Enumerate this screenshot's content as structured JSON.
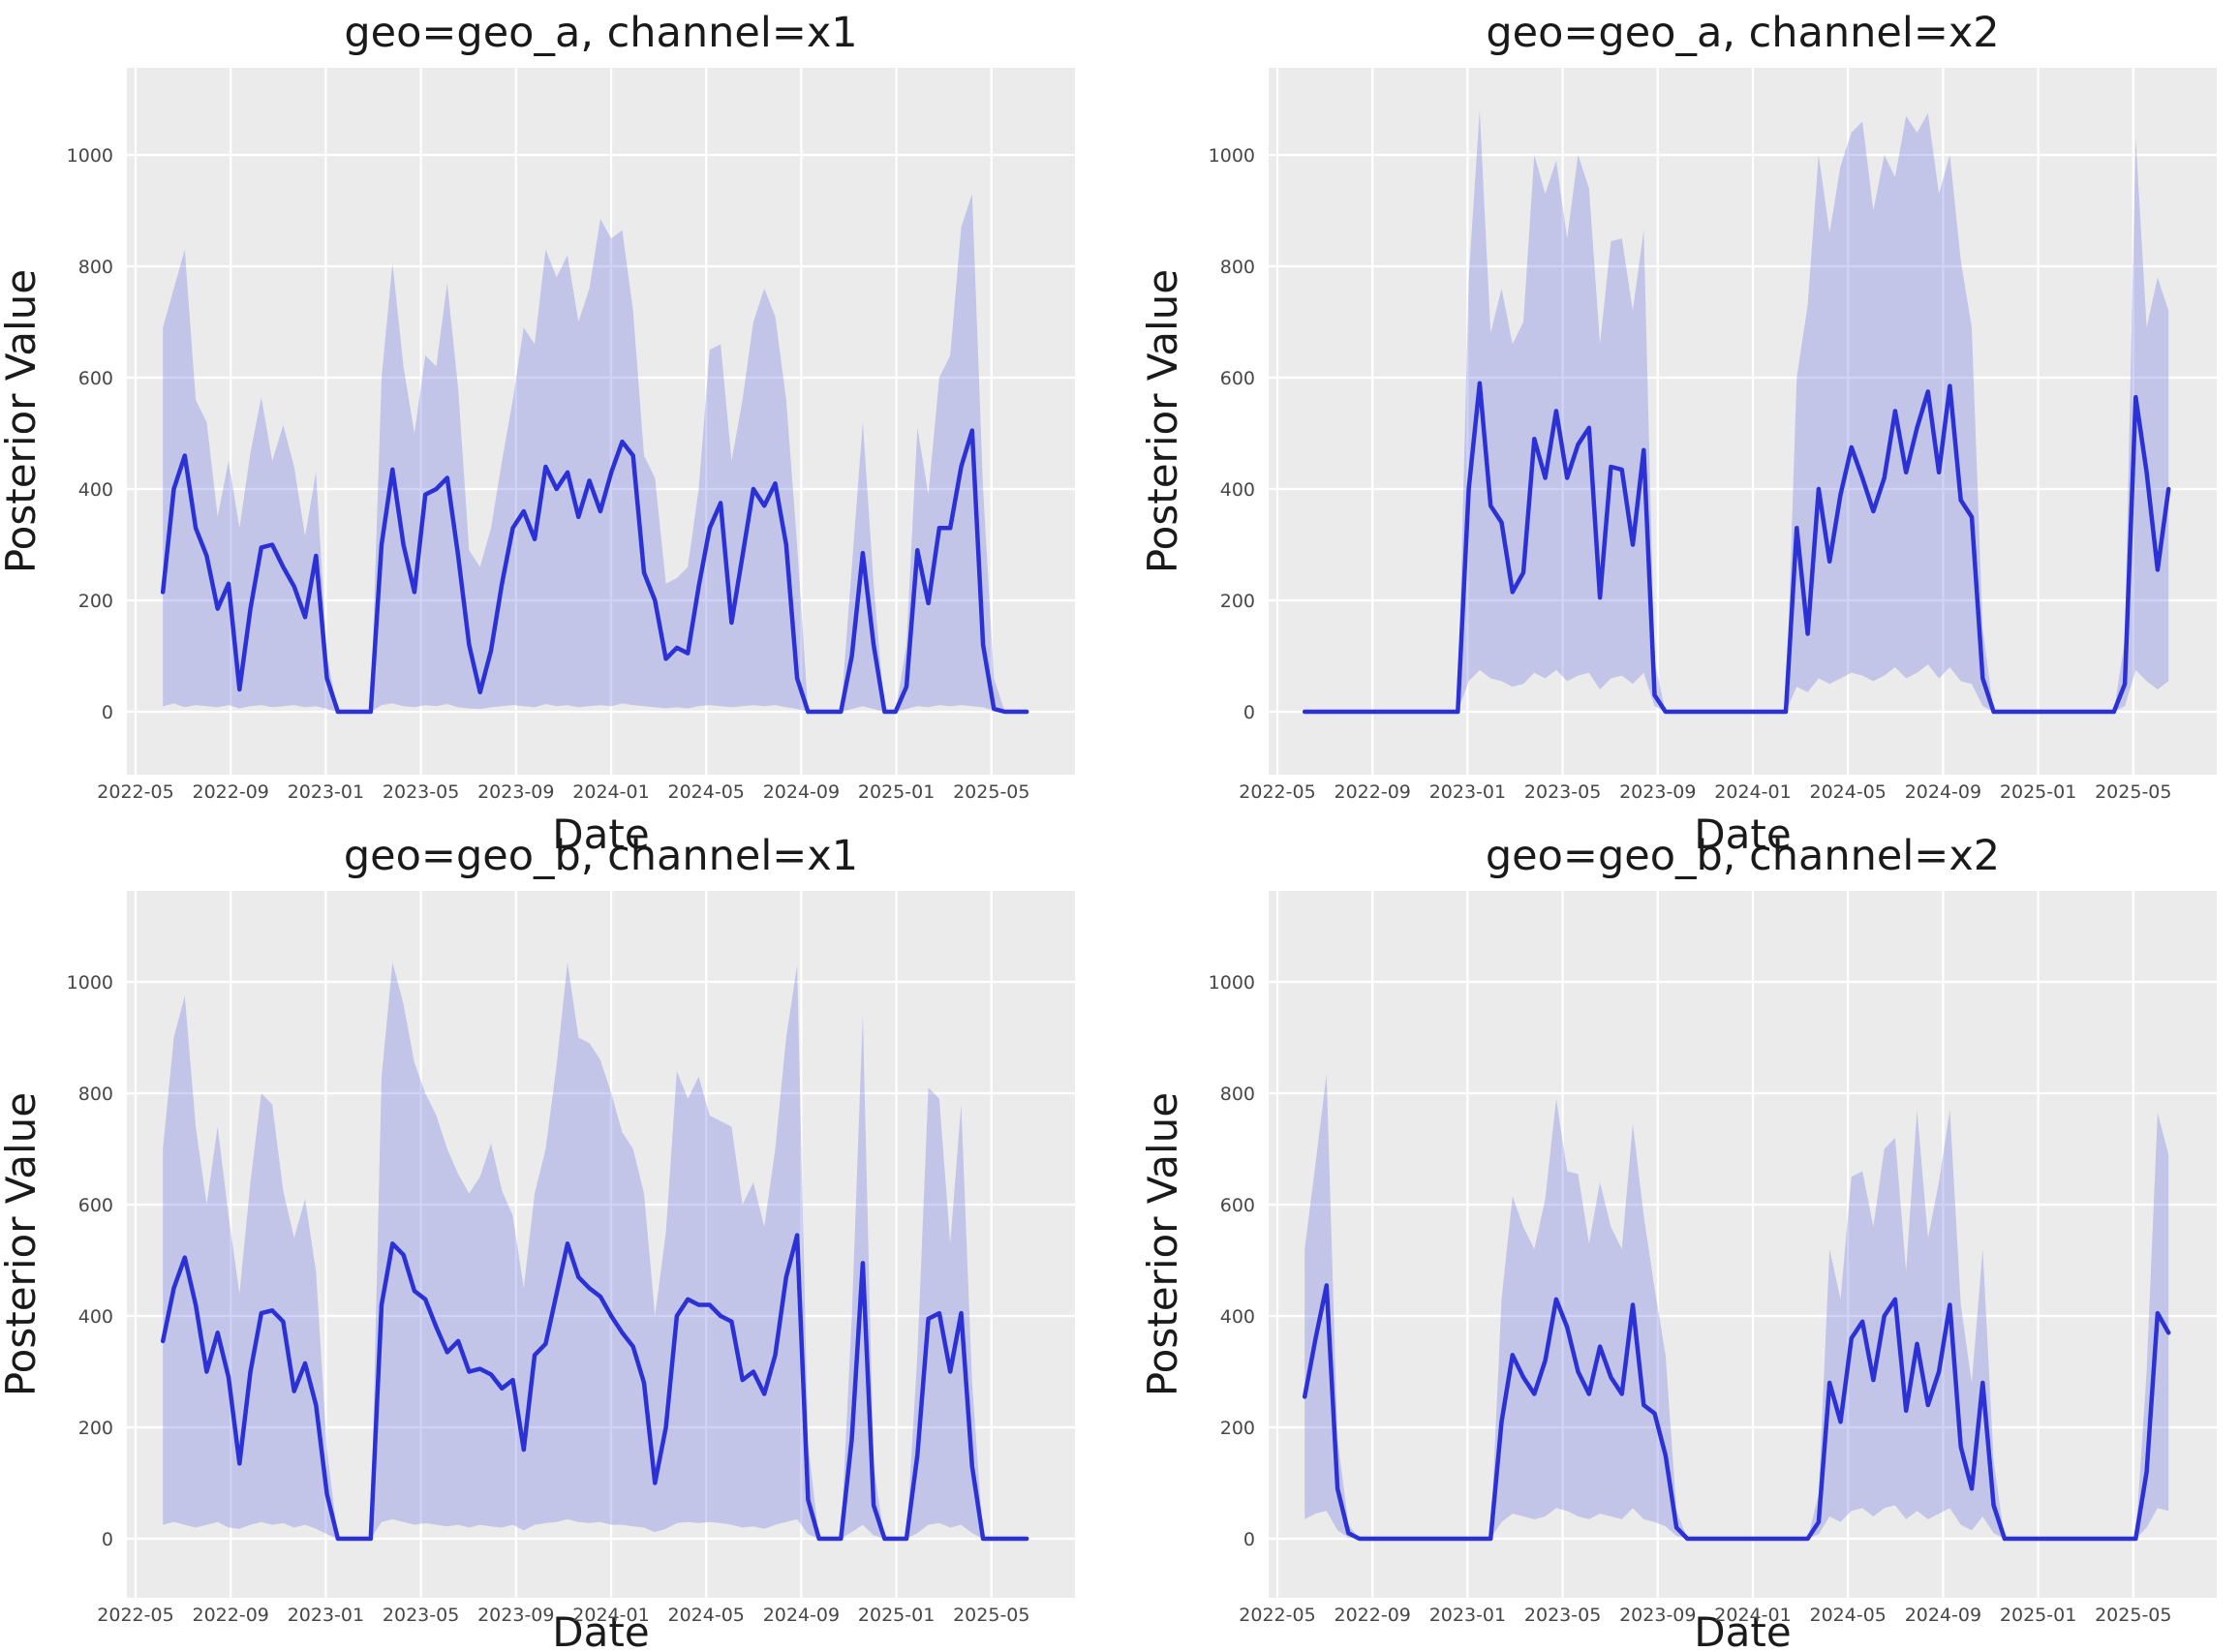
{
  "style": {
    "figure_background": "#ffffff",
    "axes_background": "#ebebeb",
    "gridline_color": "#ffffff",
    "median_line_color": "#2b31d4",
    "band_fill_color": "#6469e1",
    "band_fill_opacity": 0.3,
    "tick_text_color": "#474747",
    "label_text_color": "#1a1a1a"
  },
  "axis": {
    "x_label": "Date",
    "y_label": "Posterior Value",
    "x_ticks": [
      "2022-05",
      "2022-09",
      "2023-01",
      "2023-05",
      "2023-09",
      "2024-01",
      "2024-05",
      "2024-09",
      "2025-01",
      "2025-05"
    ],
    "y_ticks": [
      "0",
      "200",
      "400",
      "600",
      "800",
      "1000"
    ]
  },
  "chart_data": [
    {
      "type": "line",
      "title": "geo=geo_a, channel=x1",
      "geo": "geo_a",
      "channel": "x1",
      "x_start": "2022-06-05",
      "x_step_days": 14,
      "ylim": [
        -85,
        1210
      ],
      "median": [
        215,
        400,
        460,
        330,
        280,
        185,
        230,
        40,
        185,
        295,
        300,
        260,
        225,
        170,
        280,
        60,
        0,
        0,
        0,
        0,
        300,
        435,
        300,
        215,
        390,
        400,
        420,
        280,
        120,
        35,
        110,
        230,
        330,
        360,
        310,
        440,
        400,
        430,
        350,
        415,
        360,
        430,
        485,
        460,
        250,
        200,
        95,
        115,
        105,
        225,
        330,
        375,
        160,
        280,
        400,
        370,
        410,
        300,
        60,
        0,
        0,
        0,
        0,
        100,
        285,
        120,
        0,
        0,
        45,
        290,
        195,
        330,
        330,
        440,
        505,
        120,
        5,
        0,
        0,
        0
      ],
      "band_low": [
        10,
        15,
        8,
        12,
        10,
        8,
        12,
        6,
        10,
        12,
        8,
        10,
        12,
        8,
        10,
        5,
        0,
        0,
        0,
        0,
        12,
        15,
        10,
        8,
        12,
        10,
        14,
        8,
        6,
        5,
        8,
        10,
        12,
        10,
        8,
        14,
        10,
        12,
        8,
        10,
        12,
        10,
        15,
        12,
        10,
        8,
        6,
        8,
        6,
        10,
        12,
        10,
        8,
        10,
        12,
        10,
        12,
        8,
        5,
        0,
        0,
        0,
        0,
        5,
        10,
        5,
        0,
        0,
        5,
        10,
        8,
        12,
        10,
        12,
        10,
        8,
        2,
        0,
        0,
        0
      ],
      "band_high": [
        690,
        760,
        830,
        560,
        520,
        350,
        450,
        330,
        465,
        565,
        450,
        515,
        440,
        315,
        430,
        100,
        0,
        0,
        0,
        0,
        600,
        805,
        620,
        500,
        640,
        620,
        770,
        580,
        290,
        260,
        330,
        450,
        560,
        690,
        660,
        830,
        780,
        820,
        700,
        760,
        885,
        850,
        865,
        720,
        460,
        420,
        230,
        240,
        260,
        400,
        650,
        660,
        450,
        560,
        700,
        760,
        710,
        560,
        300,
        0,
        0,
        0,
        0,
        260,
        520,
        230,
        0,
        0,
        120,
        510,
        390,
        600,
        640,
        870,
        930,
        400,
        60,
        0,
        0,
        0
      ]
    },
    {
      "type": "line",
      "title": "geo=geo_a, channel=x2",
      "geo": "geo_a",
      "channel": "x2",
      "x_start": "2022-06-05",
      "x_step_days": 14,
      "ylim": [
        -85,
        1210
      ],
      "median": [
        0,
        0,
        0,
        0,
        0,
        0,
        0,
        0,
        0,
        0,
        0,
        0,
        0,
        0,
        0,
        400,
        590,
        370,
        340,
        215,
        250,
        490,
        420,
        540,
        420,
        480,
        510,
        205,
        440,
        435,
        300,
        470,
        30,
        0,
        0,
        0,
        0,
        0,
        0,
        0,
        0,
        0,
        0,
        0,
        0,
        330,
        140,
        400,
        270,
        390,
        475,
        420,
        360,
        420,
        540,
        430,
        510,
        575,
        430,
        585,
        380,
        350,
        60,
        0,
        0,
        0,
        0,
        0,
        0,
        0,
        0,
        0,
        0,
        0,
        0,
        50,
        565,
        430,
        255,
        400
      ],
      "band_low": [
        0,
        0,
        0,
        0,
        0,
        0,
        0,
        0,
        0,
        0,
        0,
        0,
        0,
        0,
        0,
        55,
        75,
        60,
        55,
        45,
        50,
        70,
        60,
        75,
        55,
        65,
        70,
        40,
        60,
        65,
        50,
        70,
        10,
        0,
        0,
        0,
        0,
        0,
        0,
        0,
        0,
        0,
        0,
        0,
        0,
        45,
        35,
        60,
        50,
        60,
        70,
        65,
        55,
        65,
        80,
        60,
        70,
        85,
        60,
        80,
        55,
        50,
        10,
        0,
        0,
        0,
        0,
        0,
        0,
        0,
        0,
        0,
        0,
        0,
        0,
        10,
        75,
        55,
        40,
        55
      ],
      "band_high": [
        0,
        0,
        0,
        0,
        0,
        0,
        0,
        0,
        0,
        0,
        0,
        0,
        0,
        0,
        0,
        780,
        1080,
        680,
        760,
        660,
        700,
        1000,
        930,
        990,
        850,
        1000,
        940,
        660,
        845,
        850,
        720,
        865,
        90,
        0,
        0,
        0,
        0,
        0,
        0,
        0,
        0,
        0,
        0,
        0,
        0,
        600,
        730,
        1000,
        860,
        980,
        1040,
        1060,
        900,
        1000,
        960,
        1070,
        1040,
        1075,
        930,
        1000,
        810,
        690,
        150,
        0,
        0,
        0,
        0,
        0,
        0,
        0,
        0,
        0,
        0,
        0,
        0,
        130,
        1030,
        690,
        780,
        720
      ]
    },
    {
      "type": "line",
      "title": "geo=geo_b, channel=x1",
      "geo": "geo_b",
      "channel": "x1",
      "x_start": "2022-06-05",
      "x_step_days": 14,
      "ylim": [
        -85,
        1210
      ],
      "median": [
        355,
        450,
        505,
        420,
        300,
        370,
        290,
        135,
        300,
        405,
        410,
        390,
        265,
        315,
        240,
        80,
        0,
        0,
        0,
        0,
        420,
        530,
        510,
        445,
        430,
        380,
        335,
        355,
        300,
        305,
        295,
        270,
        285,
        160,
        330,
        350,
        440,
        530,
        470,
        450,
        435,
        400,
        370,
        345,
        280,
        100,
        200,
        400,
        430,
        420,
        420,
        400,
        390,
        285,
        300,
        260,
        330,
        470,
        545,
        70,
        0,
        0,
        0,
        180,
        495,
        60,
        0,
        0,
        0,
        150,
        395,
        405,
        300,
        405,
        130,
        0,
        0,
        0,
        0,
        0
      ],
      "band_low": [
        25,
        30,
        25,
        20,
        25,
        30,
        20,
        18,
        25,
        30,
        25,
        28,
        20,
        25,
        18,
        8,
        0,
        0,
        0,
        0,
        30,
        35,
        30,
        25,
        28,
        25,
        22,
        25,
        20,
        25,
        22,
        20,
        25,
        15,
        25,
        28,
        30,
        35,
        30,
        28,
        30,
        25,
        25,
        22,
        20,
        12,
        18,
        28,
        30,
        28,
        30,
        28,
        25,
        20,
        22,
        18,
        25,
        30,
        35,
        8,
        0,
        0,
        0,
        12,
        25,
        6,
        0,
        0,
        0,
        10,
        25,
        28,
        20,
        25,
        10,
        0,
        0,
        0,
        0,
        0
      ],
      "band_high": [
        700,
        900,
        975,
        740,
        600,
        740,
        580,
        440,
        640,
        800,
        780,
        625,
        540,
        610,
        480,
        160,
        0,
        0,
        0,
        0,
        830,
        1035,
        960,
        855,
        800,
        760,
        700,
        655,
        620,
        650,
        710,
        625,
        580,
        450,
        620,
        700,
        850,
        1035,
        900,
        890,
        860,
        800,
        730,
        700,
        620,
        400,
        550,
        840,
        790,
        830,
        760,
        750,
        740,
        600,
        640,
        560,
        700,
        900,
        1030,
        170,
        0,
        0,
        0,
        400,
        940,
        130,
        0,
        0,
        0,
        330,
        810,
        790,
        530,
        780,
        280,
        0,
        0,
        0,
        0,
        0
      ]
    },
    {
      "type": "line",
      "title": "geo=geo_b, channel=x2",
      "geo": "geo_b",
      "channel": "x2",
      "x_start": "2022-06-05",
      "x_step_days": 14,
      "ylim": [
        -85,
        1210
      ],
      "median": [
        255,
        360,
        455,
        90,
        10,
        0,
        0,
        0,
        0,
        0,
        0,
        0,
        0,
        0,
        0,
        0,
        0,
        0,
        210,
        330,
        290,
        260,
        320,
        430,
        380,
        300,
        260,
        345,
        290,
        260,
        420,
        240,
        225,
        150,
        20,
        0,
        0,
        0,
        0,
        0,
        0,
        0,
        0,
        0,
        0,
        0,
        0,
        30,
        280,
        210,
        360,
        390,
        285,
        400,
        430,
        230,
        350,
        240,
        300,
        420,
        165,
        90,
        280,
        60,
        0,
        0,
        0,
        0,
        0,
        0,
        0,
        0,
        0,
        0,
        0,
        0,
        0,
        120,
        405,
        370
      ],
      "band_low": [
        35,
        45,
        50,
        15,
        2,
        0,
        0,
        0,
        0,
        0,
        0,
        0,
        0,
        0,
        0,
        0,
        0,
        0,
        30,
        45,
        40,
        35,
        40,
        55,
        50,
        40,
        35,
        45,
        40,
        35,
        55,
        35,
        30,
        22,
        5,
        0,
        0,
        0,
        0,
        0,
        0,
        0,
        0,
        0,
        0,
        0,
        0,
        8,
        40,
        30,
        50,
        55,
        40,
        55,
        60,
        35,
        50,
        35,
        45,
        55,
        25,
        15,
        40,
        10,
        0,
        0,
        0,
        0,
        0,
        0,
        0,
        0,
        0,
        0,
        0,
        0,
        0,
        20,
        55,
        50
      ],
      "band_high": [
        520,
        675,
        835,
        180,
        25,
        0,
        0,
        0,
        0,
        0,
        0,
        0,
        0,
        0,
        0,
        0,
        0,
        0,
        430,
        615,
        560,
        520,
        610,
        790,
        660,
        655,
        530,
        640,
        560,
        520,
        745,
        580,
        450,
        330,
        50,
        0,
        0,
        0,
        0,
        0,
        0,
        0,
        0,
        0,
        0,
        0,
        0,
        80,
        520,
        430,
        650,
        660,
        560,
        700,
        720,
        480,
        770,
        540,
        640,
        770,
        420,
        280,
        520,
        140,
        0,
        0,
        0,
        0,
        0,
        0,
        0,
        0,
        0,
        0,
        0,
        0,
        0,
        300,
        765,
        690
      ]
    }
  ]
}
